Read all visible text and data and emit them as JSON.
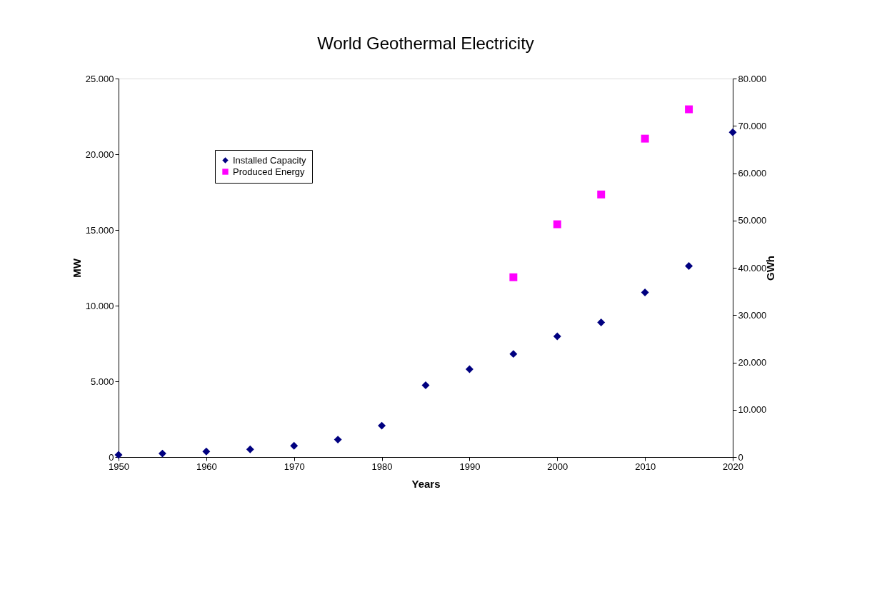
{
  "chart_data": {
    "type": "scatter",
    "title": "World Geothermal Electricity",
    "xlabel": "Years",
    "ylabel": "MW",
    "y2label": "GWh",
    "x": [
      1950,
      1955,
      1960,
      1965,
      1970,
      1975,
      1980,
      1985,
      1990,
      1995,
      2000,
      2005,
      2010,
      2015,
      2020
    ],
    "series": [
      {
        "name": "Installed Capacity",
        "color": "#000080",
        "marker": "diamond",
        "values": [
          140,
          230,
          370,
          510,
          740,
          1150,
          2070,
          4740,
          5800,
          6810,
          7970,
          8890,
          10870,
          12620,
          21450
        ]
      },
      {
        "name": "Produced Energy",
        "color": "#ff00ff",
        "marker": "square",
        "axis": "y2",
        "x": [
          1995,
          2000,
          2005,
          2010,
          2015
        ],
        "values": [
          38000,
          49200,
          55500,
          67300,
          73500
        ]
      }
    ],
    "xlim": [
      1950,
      2020
    ],
    "xticks": [
      1950,
      1960,
      1970,
      1980,
      1990,
      2000,
      2010,
      2020
    ],
    "ylim": [
      0,
      25000
    ],
    "yticks": [
      0,
      {
        "value": 5000,
        "label": "5.000"
      },
      {
        "value": 10000,
        "label": "10.000"
      },
      {
        "value": 15000,
        "label": "15.000"
      },
      {
        "value": 20000,
        "label": "20.000"
      },
      {
        "value": 25000,
        "label": "25.000"
      }
    ],
    "y2lim": [
      0,
      80000
    ],
    "y2ticks": [
      0,
      {
        "value": 10000,
        "label": "10.000"
      },
      {
        "value": 20000,
        "label": "20.000"
      },
      {
        "value": 30000,
        "label": "30.000"
      },
      {
        "value": 40000,
        "label": "40.000"
      },
      {
        "value": 50000,
        "label": "50.000"
      },
      {
        "value": 60000,
        "label": "60.000"
      },
      {
        "value": 70000,
        "label": "70.000"
      },
      {
        "value": 80000,
        "label": "80.000"
      }
    ],
    "grid": false,
    "legend": "top left"
  }
}
